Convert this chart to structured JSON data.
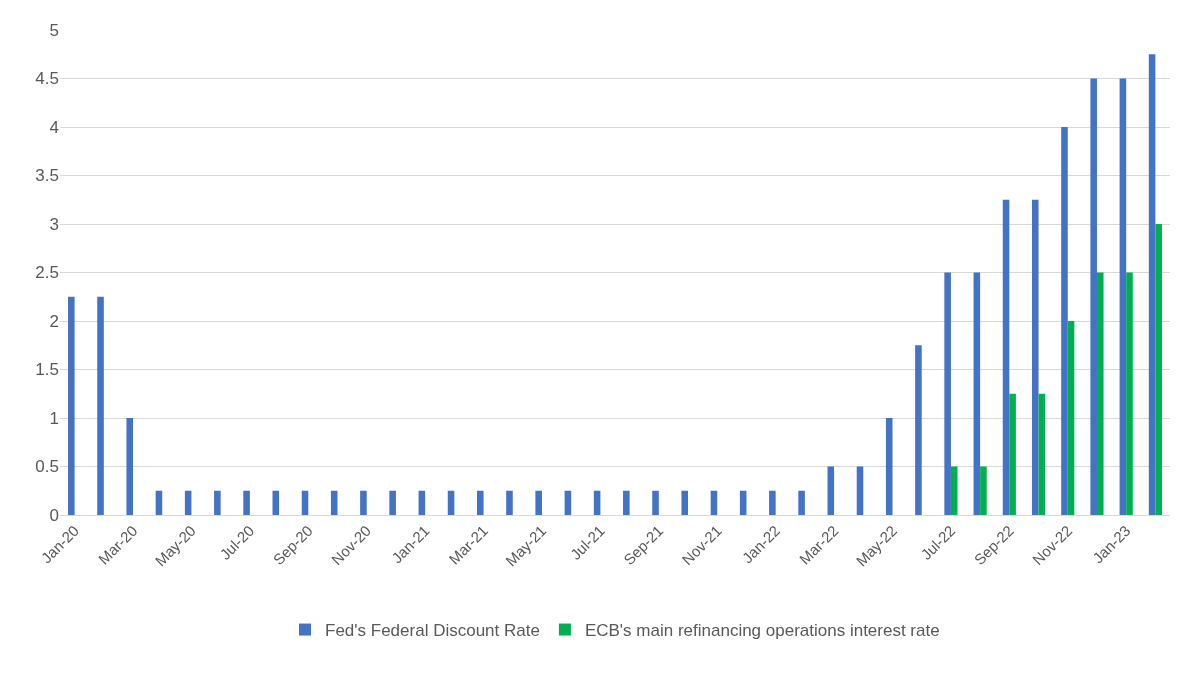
{
  "chart_data": {
    "type": "bar",
    "categories": [
      "Jan-20",
      null,
      "Mar-20",
      null,
      "May-20",
      null,
      "Jul-20",
      null,
      "Sep-20",
      null,
      "Nov-20",
      null,
      "Jan-21",
      null,
      "Mar-21",
      null,
      "May-21",
      null,
      "Jul-21",
      null,
      "Sep-21",
      null,
      "Nov-21",
      null,
      "Jan-22",
      null,
      "Mar-22",
      null,
      "May-22",
      null,
      "Jul-22",
      null,
      "Sep-22",
      null,
      "Nov-22",
      null,
      "Jan-23",
      null
    ],
    "series": [
      {
        "name": "Fed's Federal Discount Rate",
        "color": "#4472c4",
        "values": [
          2.25,
          2.25,
          1.0,
          0.25,
          0.25,
          0.25,
          0.25,
          0.25,
          0.25,
          0.25,
          0.25,
          0.25,
          0.25,
          0.25,
          0.25,
          0.25,
          0.25,
          0.25,
          0.25,
          0.25,
          0.25,
          0.25,
          0.25,
          0.25,
          0.25,
          0.25,
          0.5,
          0.5,
          1.0,
          1.75,
          2.5,
          2.5,
          3.25,
          3.25,
          4.0,
          4.5,
          4.5,
          4.75
        ]
      },
      {
        "name": "ECB's main refinancing operations interest rate",
        "color": "#00b050",
        "values": [
          0,
          0,
          0,
          0,
          0,
          0,
          0,
          0,
          0,
          0,
          0,
          0,
          0,
          0,
          0,
          0,
          0,
          0,
          0,
          0,
          0,
          0,
          0,
          0,
          0,
          0,
          0,
          0,
          0,
          0,
          0.5,
          0.5,
          1.25,
          1.25,
          2.0,
          2.5,
          2.5,
          3.0
        ]
      }
    ],
    "ylim": [
      0,
      5
    ],
    "yticks": [
      0,
      0.5,
      1,
      1.5,
      2,
      2.5,
      3,
      3.5,
      4,
      4.5,
      5
    ],
    "grid": "y",
    "legend": "bottom"
  }
}
